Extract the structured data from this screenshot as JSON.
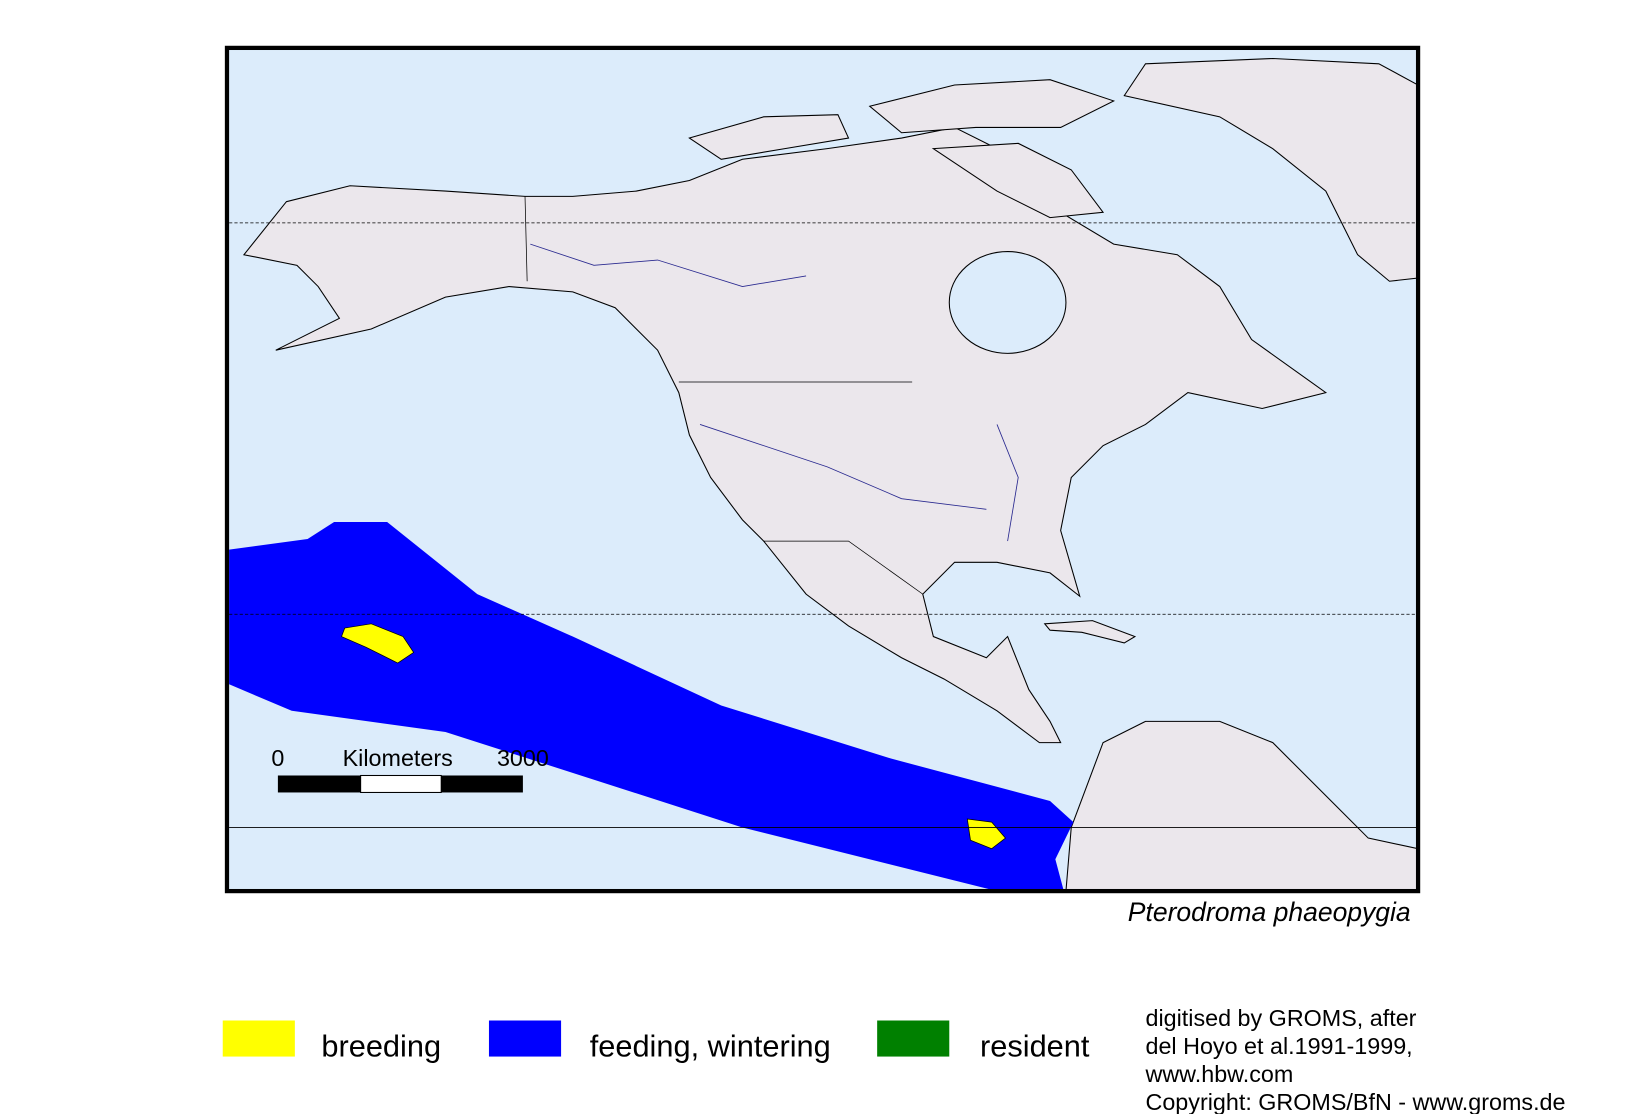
{
  "map": {
    "species": "Pterodroma phaeopygia",
    "scale_bar": {
      "start": "0",
      "unit": "Kilometers",
      "end": "3000"
    }
  },
  "legend": [
    {
      "label": "breeding",
      "color": "#ffff00"
    },
    {
      "label": "feeding, wintering",
      "color": "#0000ff"
    },
    {
      "label": "resident",
      "color": "#008000"
    }
  ],
  "credits": [
    "digitised by GROMS, after",
    "del Hoyo et al.1991-1999,",
    "www.hbw.com",
    "Copyright: GROMS/BfN - www.groms.de"
  ]
}
